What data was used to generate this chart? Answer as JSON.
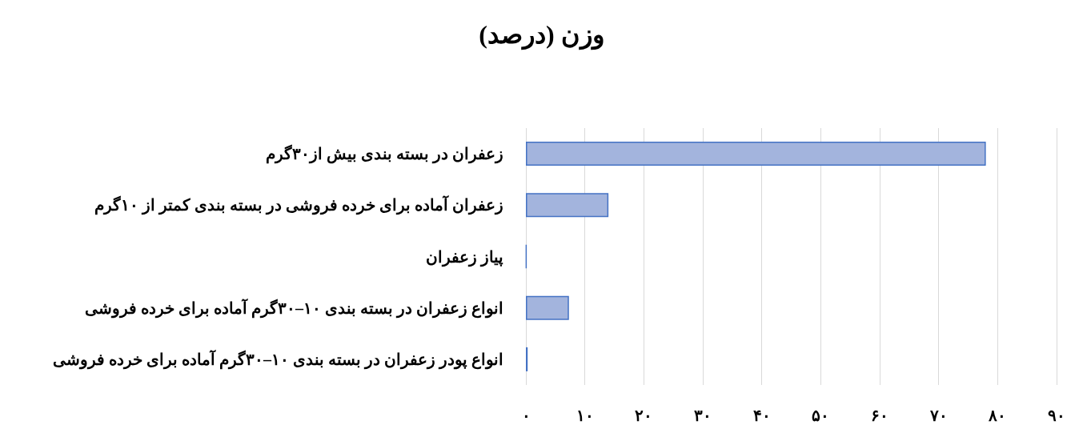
{
  "chart_data": {
    "type": "bar",
    "orientation": "horizontal",
    "title": "وزن (درصد)",
    "categories": [
      "زعفران در بسته بندی بیش از۳۰گرم",
      "زعفران آماده برای خرده فروشی در بسته بندی کمتر از ۱۰گرم",
      "پیاز زعفران",
      "انواع زعفران در بسته بندی ۱۰–۳۰گرم آماده برای خرده فروشی",
      "انواع پودر زعفران در بسته بندی ۱۰–۳۰گرم آماده برای خرده فروشی"
    ],
    "values": [
      78,
      14,
      0.1,
      7.3,
      0.3
    ],
    "colors": [
      "#a3b4dd",
      "#a3b4dd",
      "#4472c4",
      "#a3b4dd",
      "#a3b4dd"
    ],
    "xlim": [
      0,
      90
    ],
    "xticks": [
      {
        "value": 0,
        "label": "۰"
      },
      {
        "value": 10,
        "label": "۱۰"
      },
      {
        "value": 20,
        "label": "۲۰"
      },
      {
        "value": 30,
        "label": "۳۰"
      },
      {
        "value": 40,
        "label": "۴۰"
      },
      {
        "value": 50,
        "label": "۵۰"
      },
      {
        "value": 60,
        "label": "۶۰"
      },
      {
        "value": 70,
        "label": "۷۰"
      },
      {
        "value": 80,
        "label": "۸۰"
      },
      {
        "value": 90,
        "label": "۹۰"
      }
    ],
    "grid": "x"
  }
}
